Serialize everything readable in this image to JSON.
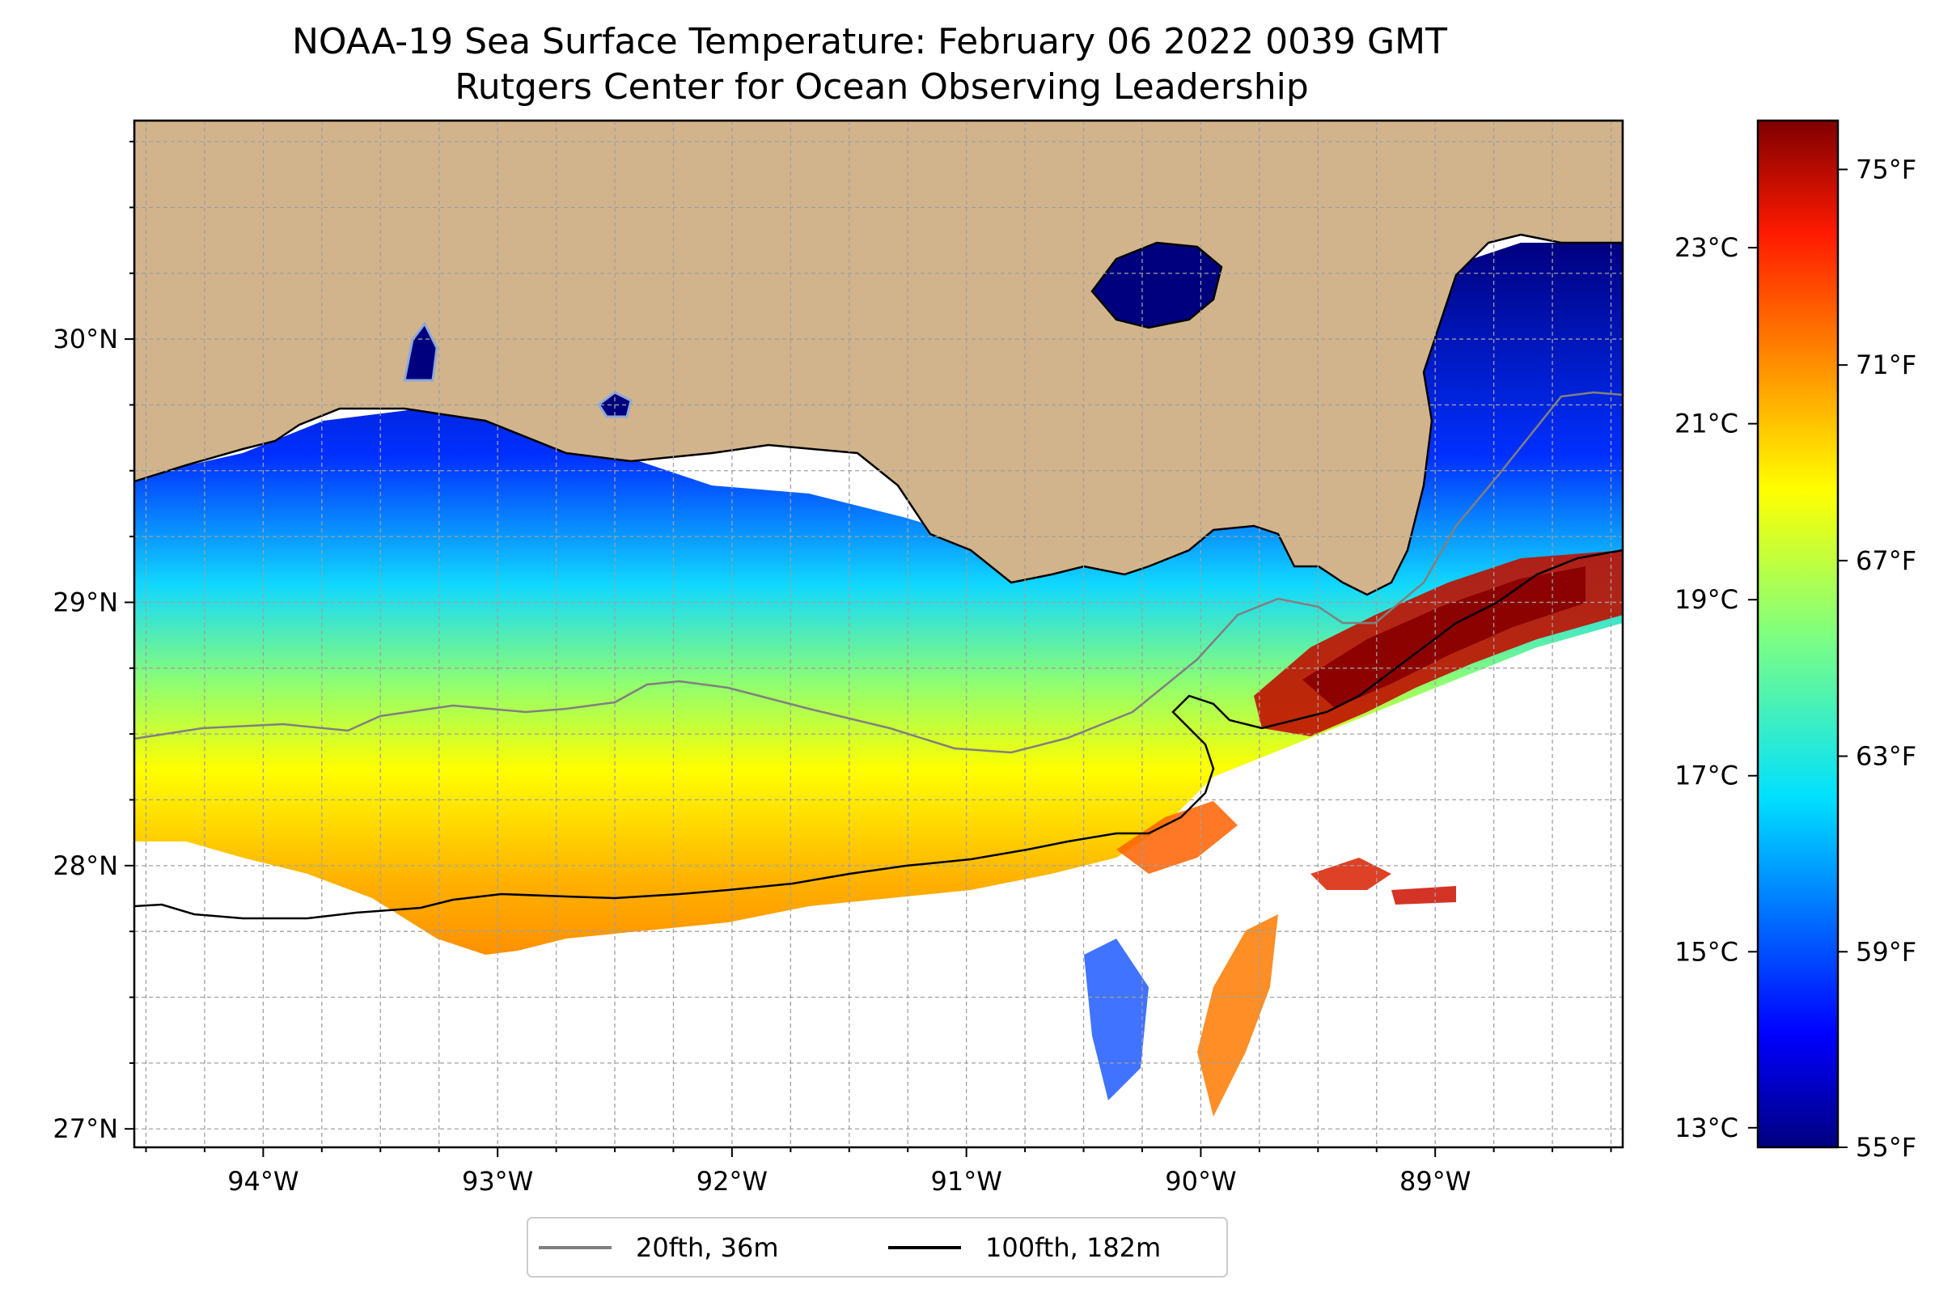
{
  "title": {
    "line1": "NOAA-19 Sea Surface Temperature: February 06 2022 0039 GMT",
    "line2": "Rutgers Center for Ocean Observing Leadership"
  },
  "map": {
    "lon_range": [
      -94.55,
      -88.2
    ],
    "lat_range": [
      26.93,
      30.83
    ],
    "lon_ticks": [
      {
        "value": -94,
        "label": "94°W"
      },
      {
        "value": -93,
        "label": "93°W"
      },
      {
        "value": -92,
        "label": "92°W"
      },
      {
        "value": -91,
        "label": "91°W"
      },
      {
        "value": -90,
        "label": "90°W"
      },
      {
        "value": -89,
        "label": "89°W"
      }
    ],
    "lat_ticks": [
      {
        "value": 30,
        "label": "30°N"
      },
      {
        "value": 29,
        "label": "29°N"
      },
      {
        "value": 28,
        "label": "28°N"
      },
      {
        "value": 27,
        "label": "27°N"
      }
    ],
    "gridlines": "dashed, every 0.25 degree",
    "colors": {
      "land": "#d2b48c",
      "coastline": "#000000",
      "contour_20fth": "#808080",
      "contour_100fth": "#000000",
      "no_data": "#ffffff"
    }
  },
  "colorbar": {
    "colormap": "jet",
    "min_f": 55,
    "max_f": 76,
    "f_ticks": [
      {
        "value": 55,
        "label": "55°F"
      },
      {
        "value": 59,
        "label": "59°F"
      },
      {
        "value": 63,
        "label": "63°F"
      },
      {
        "value": 67,
        "label": "67°F"
      },
      {
        "value": 71,
        "label": "71°F"
      },
      {
        "value": 75,
        "label": "75°F"
      }
    ],
    "c_ticks": [
      {
        "value": 13,
        "label": "13°C"
      },
      {
        "value": 15,
        "label": "15°C"
      },
      {
        "value": 17,
        "label": "17°C"
      },
      {
        "value": 19,
        "label": "19°C"
      },
      {
        "value": 21,
        "label": "21°C"
      },
      {
        "value": 23,
        "label": "23°C"
      }
    ]
  },
  "legend": {
    "items": [
      {
        "label": "20fth, 36m",
        "color": "#808080"
      },
      {
        "label": "100fth, 182m",
        "color": "#000000"
      }
    ]
  }
}
